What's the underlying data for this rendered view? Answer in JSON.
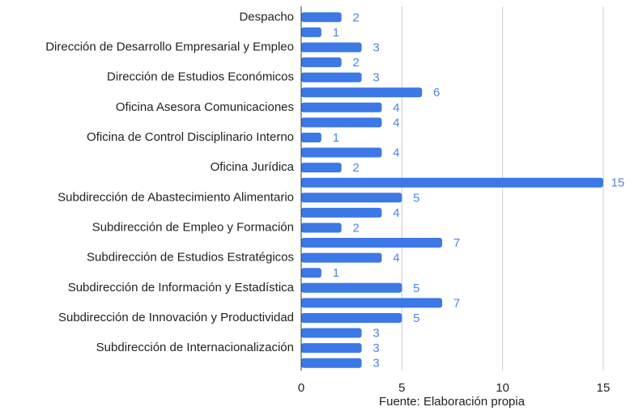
{
  "chart_data": {
    "type": "bar",
    "orientation": "horizontal",
    "categories": [
      "Despacho",
      null,
      "Dirección de Desarrollo Empresarial y Empleo",
      null,
      "Dirección de Estudios Económicos",
      null,
      "Oficina Asesora Comunicaciones",
      null,
      "Oficina de Control Disciplinario Interno",
      null,
      "Oficina Jurídica",
      null,
      "Subdirección de Abastecimiento Alimentario",
      null,
      "Subdirección de Empleo y Formación",
      null,
      "Subdirección de Estudios Estratégicos",
      null,
      "Subdirección de Información y Estadística",
      null,
      "Subdirección de Innovación y Productividad",
      null,
      "Subdirección de Internacionalización",
      null
    ],
    "values": [
      2,
      1,
      3,
      2,
      3,
      6,
      4,
      4,
      1,
      4,
      2,
      15,
      5,
      4,
      2,
      7,
      4,
      1,
      5,
      7,
      5,
      3,
      3,
      3
    ],
    "color": "#3c78e6",
    "xlabel": "Fuente: Elaboración propia",
    "xlim": [
      0,
      15
    ],
    "xticks": [
      0,
      5,
      10,
      15
    ],
    "grid": true
  }
}
